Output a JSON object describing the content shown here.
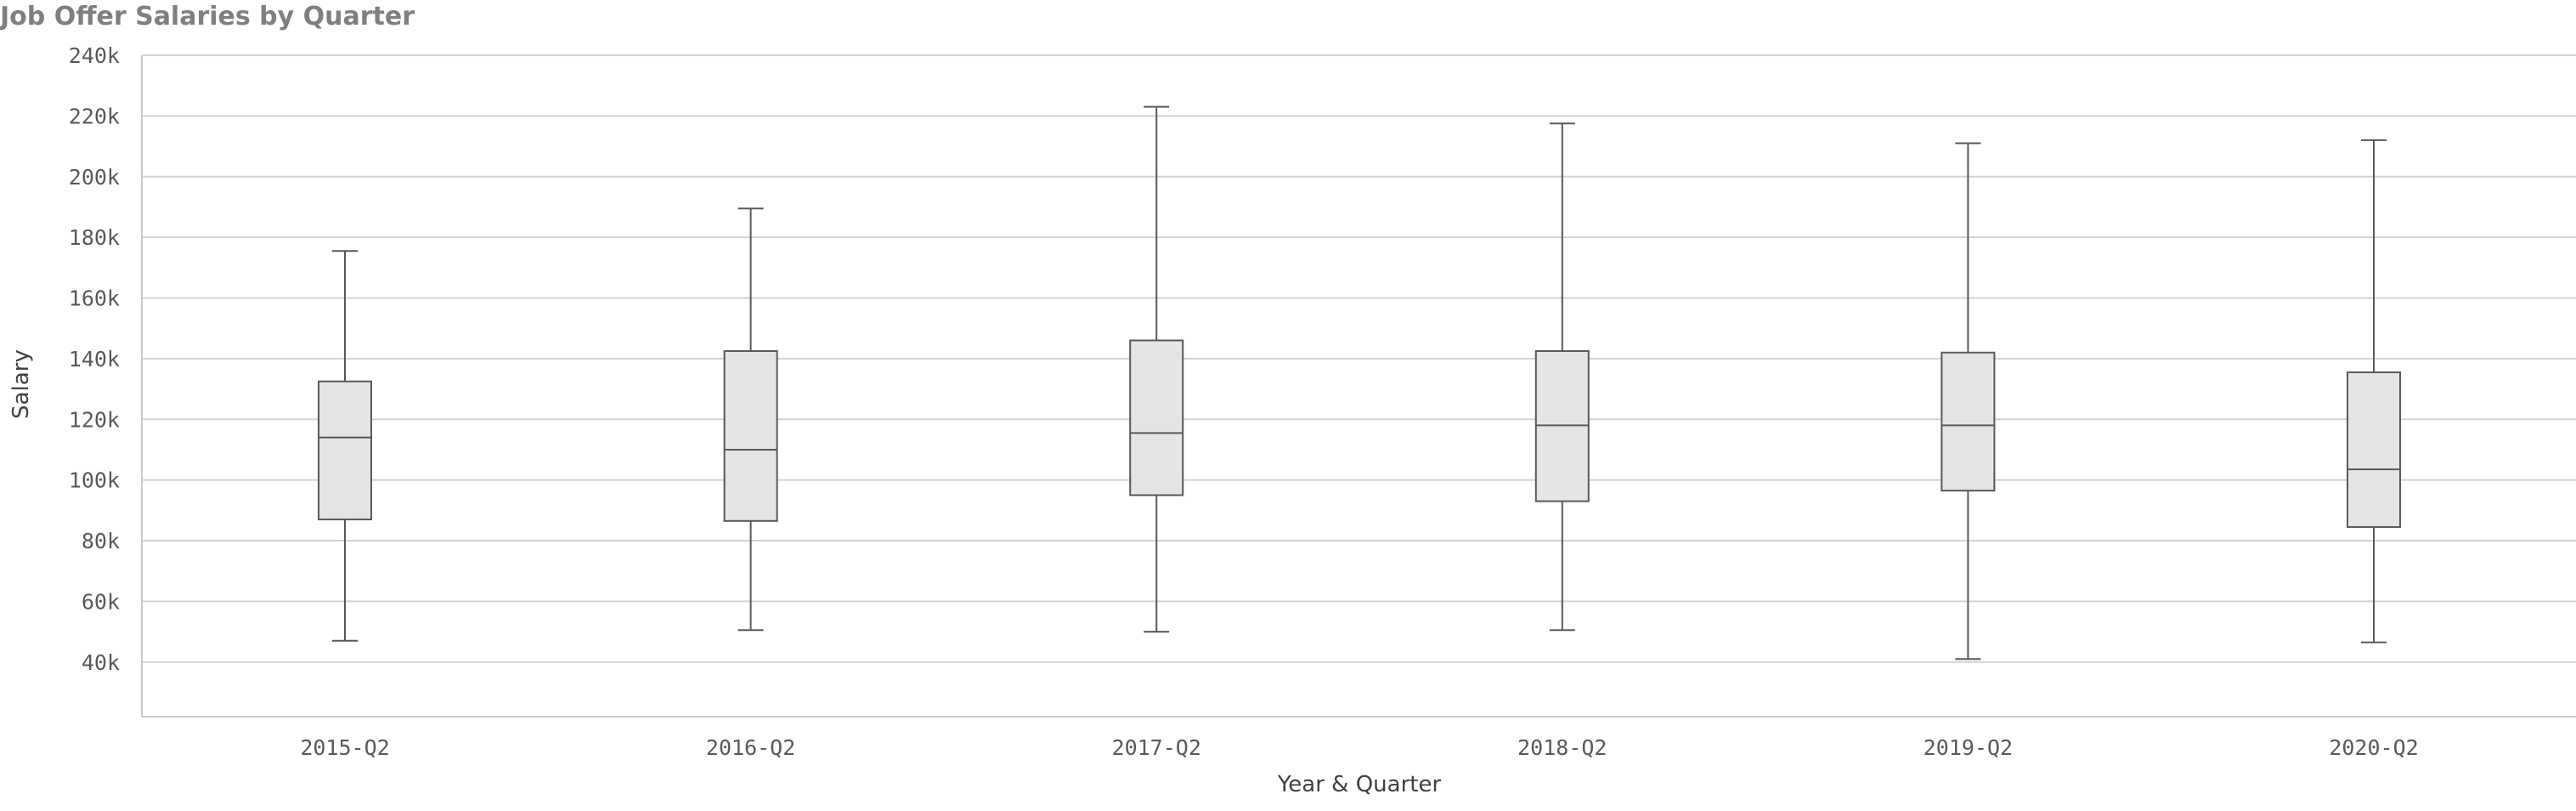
{
  "chart_data": {
    "type": "boxplot",
    "title": "Job Offer Salaries by Quarter",
    "xlabel": "Year & Quarter",
    "ylabel": "Salary",
    "ylim": [
      22000,
      240000
    ],
    "y_ticks": [
      40000,
      60000,
      80000,
      100000,
      120000,
      140000,
      160000,
      180000,
      200000,
      220000,
      240000
    ],
    "y_tick_labels": [
      "40k",
      "60k",
      "80k",
      "100k",
      "120k",
      "140k",
      "160k",
      "180k",
      "200k",
      "220k",
      "240k"
    ],
    "grid": true,
    "categories": [
      "2015-Q2",
      "2016-Q2",
      "2017-Q2",
      "2018-Q2",
      "2019-Q2",
      "2020-Q2"
    ],
    "boxes": [
      {
        "min": 47000,
        "q1": 87000,
        "median": 114000,
        "q3": 132500,
        "max": 175500
      },
      {
        "min": 50500,
        "q1": 86500,
        "median": 110000,
        "q3": 142500,
        "max": 189500
      },
      {
        "min": 50000,
        "q1": 95000,
        "median": 115500,
        "q3": 146000,
        "max": 223000
      },
      {
        "min": 50500,
        "q1": 93000,
        "median": 118000,
        "q3": 142500,
        "max": 217500
      },
      {
        "min": 41000,
        "q1": 96500,
        "median": 118000,
        "q3": 142000,
        "max": 211000
      },
      {
        "min": 46500,
        "q1": 84500,
        "median": 103500,
        "q3": 135500,
        "max": 212000
      }
    ],
    "colors": {
      "box_fill": "#e5e5e5",
      "box_stroke": "#595959",
      "grid": "#d3d3d3",
      "axis": "#c8c8c8"
    }
  }
}
